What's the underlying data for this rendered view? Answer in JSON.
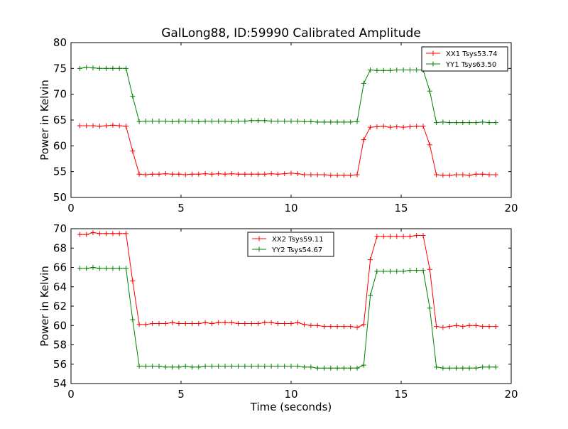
{
  "chart_data": [
    {
      "type": "line",
      "title": "GalLong88, ID:59990 Calibrated Amplitude",
      "xlabel": "",
      "ylabel": "Power in Kelvin",
      "xlim": [
        0,
        20
      ],
      "ylim": [
        50,
        80
      ],
      "xticks": [
        0,
        5,
        10,
        15,
        20
      ],
      "yticks": [
        50,
        55,
        60,
        65,
        70,
        75,
        80
      ],
      "grid": false,
      "legend_position": "top-right",
      "x": [
        0.4,
        0.7,
        1.0,
        1.3,
        1.6,
        1.9,
        2.2,
        2.5,
        2.8,
        3.1,
        3.4,
        3.7,
        4.0,
        4.3,
        4.6,
        4.9,
        5.2,
        5.5,
        5.8,
        6.1,
        6.4,
        6.7,
        7.0,
        7.3,
        7.6,
        7.9,
        8.2,
        8.5,
        8.8,
        9.1,
        9.4,
        9.7,
        10.0,
        10.3,
        10.6,
        10.9,
        11.2,
        11.5,
        11.8,
        12.1,
        12.4,
        12.7,
        13.0,
        13.3,
        13.6,
        13.9,
        14.2,
        14.5,
        14.8,
        15.1,
        15.4,
        15.7,
        16.0,
        16.3,
        16.6,
        16.9,
        17.2,
        17.5,
        17.8,
        18.1,
        18.4,
        18.7,
        19.0,
        19.3
      ],
      "series": [
        {
          "name": "XX1 Tsys53.74",
          "color": "#ff0000",
          "values": [
            63.9,
            63.9,
            63.9,
            63.8,
            63.9,
            64.0,
            63.9,
            63.8,
            59.0,
            54.5,
            54.4,
            54.5,
            54.5,
            54.6,
            54.5,
            54.5,
            54.4,
            54.5,
            54.5,
            54.6,
            54.5,
            54.6,
            54.5,
            54.6,
            54.5,
            54.5,
            54.5,
            54.5,
            54.5,
            54.6,
            54.5,
            54.6,
            54.7,
            54.6,
            54.4,
            54.4,
            54.4,
            54.4,
            54.3,
            54.3,
            54.3,
            54.3,
            54.4,
            61.2,
            63.6,
            63.7,
            63.8,
            63.6,
            63.7,
            63.6,
            63.7,
            63.8,
            63.8,
            60.2,
            54.4,
            54.3,
            54.3,
            54.4,
            54.4,
            54.3,
            54.5,
            54.5,
            54.4,
            54.4
          ]
        },
        {
          "name": "YY1 Tsys63.50",
          "color": "#008000",
          "values": [
            75.0,
            75.2,
            75.1,
            75.0,
            75.0,
            75.0,
            75.0,
            75.0,
            69.6,
            64.7,
            64.8,
            64.8,
            64.8,
            64.8,
            64.7,
            64.8,
            64.8,
            64.8,
            64.7,
            64.8,
            64.8,
            64.8,
            64.8,
            64.7,
            64.8,
            64.8,
            64.9,
            64.9,
            64.9,
            64.8,
            64.8,
            64.8,
            64.8,
            64.8,
            64.7,
            64.7,
            64.6,
            64.6,
            64.6,
            64.6,
            64.6,
            64.6,
            64.7,
            72.1,
            74.7,
            74.6,
            74.6,
            74.6,
            74.7,
            74.7,
            74.7,
            74.7,
            74.7,
            70.6,
            64.5,
            64.6,
            64.5,
            64.5,
            64.5,
            64.5,
            64.5,
            64.6,
            64.5,
            64.5
          ]
        }
      ]
    },
    {
      "type": "line",
      "title": "",
      "xlabel": "Time (seconds)",
      "ylabel": "Power in Kelvin",
      "xlim": [
        0,
        20
      ],
      "ylim": [
        54,
        70
      ],
      "xticks": [
        0,
        5,
        10,
        15,
        20
      ],
      "yticks": [
        54,
        56,
        58,
        60,
        62,
        64,
        66,
        68,
        70
      ],
      "grid": false,
      "legend_position": "top-center",
      "x": [
        0.4,
        0.7,
        1.0,
        1.3,
        1.6,
        1.9,
        2.2,
        2.5,
        2.8,
        3.1,
        3.4,
        3.7,
        4.0,
        4.3,
        4.6,
        4.9,
        5.2,
        5.5,
        5.8,
        6.1,
        6.4,
        6.7,
        7.0,
        7.3,
        7.6,
        7.9,
        8.2,
        8.5,
        8.8,
        9.1,
        9.4,
        9.7,
        10.0,
        10.3,
        10.6,
        10.9,
        11.2,
        11.5,
        11.8,
        12.1,
        12.4,
        12.7,
        13.0,
        13.3,
        13.6,
        13.9,
        14.2,
        14.5,
        14.8,
        15.1,
        15.4,
        15.7,
        16.0,
        16.3,
        16.6,
        16.9,
        17.2,
        17.5,
        17.8,
        18.1,
        18.4,
        18.7,
        19.0,
        19.3
      ],
      "series": [
        {
          "name": "XX2 Tsys59.11",
          "color": "#ff0000",
          "values": [
            69.4,
            69.4,
            69.6,
            69.5,
            69.5,
            69.5,
            69.5,
            69.5,
            64.6,
            60.1,
            60.1,
            60.2,
            60.2,
            60.2,
            60.3,
            60.2,
            60.2,
            60.2,
            60.2,
            60.3,
            60.2,
            60.3,
            60.3,
            60.3,
            60.2,
            60.2,
            60.2,
            60.2,
            60.3,
            60.3,
            60.2,
            60.2,
            60.2,
            60.3,
            60.1,
            60.0,
            60.0,
            59.9,
            59.9,
            59.9,
            59.9,
            59.9,
            59.8,
            60.1,
            66.8,
            69.2,
            69.2,
            69.2,
            69.2,
            69.2,
            69.2,
            69.3,
            69.3,
            65.8,
            59.9,
            59.8,
            59.9,
            60.0,
            59.9,
            60.0,
            60.0,
            59.9,
            59.9,
            59.9
          ]
        },
        {
          "name": "YY2 Tsys54.67",
          "color": "#008000",
          "values": [
            65.9,
            65.9,
            66.0,
            65.9,
            65.9,
            65.9,
            65.9,
            65.9,
            60.6,
            55.8,
            55.8,
            55.8,
            55.8,
            55.7,
            55.7,
            55.7,
            55.8,
            55.7,
            55.7,
            55.8,
            55.8,
            55.8,
            55.8,
            55.8,
            55.8,
            55.8,
            55.8,
            55.8,
            55.8,
            55.8,
            55.8,
            55.8,
            55.8,
            55.8,
            55.7,
            55.7,
            55.6,
            55.6,
            55.6,
            55.6,
            55.6,
            55.6,
            55.6,
            55.9,
            63.1,
            65.6,
            65.6,
            65.6,
            65.6,
            65.6,
            65.7,
            65.7,
            65.7,
            61.8,
            55.7,
            55.6,
            55.6,
            55.6,
            55.6,
            55.6,
            55.6,
            55.7,
            55.7,
            55.7
          ]
        }
      ]
    }
  ]
}
